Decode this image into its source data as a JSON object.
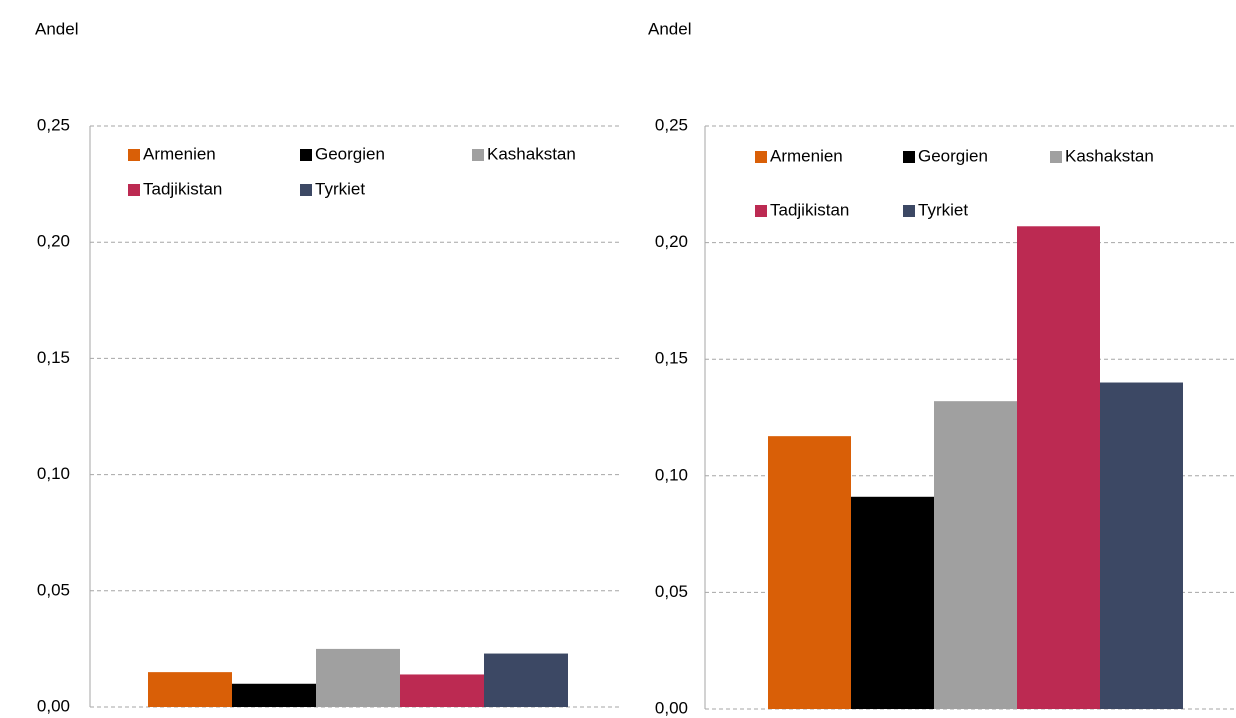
{
  "chart_data": [
    {
      "type": "bar",
      "ylabel": "Andel",
      "ylim": [
        0,
        0.25
      ],
      "yticks": [
        {
          "value": 0,
          "label": "0,00"
        },
        {
          "value": 0.05,
          "label": "0,05"
        },
        {
          "value": 0.1,
          "label": "0,10"
        },
        {
          "value": 0.15,
          "label": "0,15"
        },
        {
          "value": 0.2,
          "label": "0,20"
        },
        {
          "value": 0.25,
          "label": "0,25"
        }
      ],
      "grid": true,
      "legend": "top",
      "series": [
        {
          "name": "Armenien",
          "color": "#d95f07",
          "values": [
            0.015
          ]
        },
        {
          "name": "Georgien",
          "color": "#000000",
          "values": [
            0.01
          ]
        },
        {
          "name": "Kashakstan",
          "color": "#a0a0a0",
          "values": [
            0.025
          ]
        },
        {
          "name": "Tadjikistan",
          "color": "#bc2a52",
          "values": [
            0.014
          ]
        },
        {
          "name": "Tyrkiet",
          "color": "#3c4864",
          "values": [
            0.023
          ]
        }
      ]
    },
    {
      "type": "bar",
      "ylabel": "Andel",
      "ylim": [
        0,
        0.25
      ],
      "yticks": [
        {
          "value": 0,
          "label": "0,00"
        },
        {
          "value": 0.05,
          "label": "0,05"
        },
        {
          "value": 0.1,
          "label": "0,10"
        },
        {
          "value": 0.15,
          "label": "0,15"
        },
        {
          "value": 0.2,
          "label": "0,20"
        },
        {
          "value": 0.25,
          "label": "0,25"
        }
      ],
      "grid": true,
      "legend": "top",
      "series": [
        {
          "name": "Armenien",
          "color": "#d95f07",
          "values": [
            0.117
          ]
        },
        {
          "name": "Georgien",
          "color": "#000000",
          "values": [
            0.091
          ]
        },
        {
          "name": "Kashakstan",
          "color": "#a0a0a0",
          "values": [
            0.132
          ]
        },
        {
          "name": "Tadjikistan",
          "color": "#bc2a52",
          "values": [
            0.207
          ]
        },
        {
          "name": "Tyrkiet",
          "color": "#3c4864",
          "values": [
            0.14
          ]
        }
      ]
    }
  ]
}
